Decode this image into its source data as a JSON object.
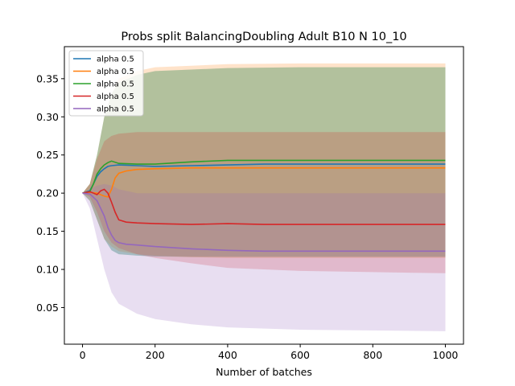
{
  "chart_data": {
    "type": "line",
    "title": "Probs split BalancingDoubling Adult B10 N 10_10",
    "xlabel": "Number of batches",
    "ylabel": "",
    "xlim": [
      -50,
      1050
    ],
    "ylim": [
      0.002,
      0.392
    ],
    "xticks": [
      0,
      200,
      400,
      600,
      800,
      1000
    ],
    "yticks": [
      0.05,
      0.1,
      0.15,
      0.2,
      0.25,
      0.3,
      0.35
    ],
    "ytick_labels": [
      "0.05",
      "0.10",
      "0.15",
      "0.20",
      "0.25",
      "0.30",
      "0.35"
    ],
    "legend_position": "upper-left",
    "grid": false,
    "series": [
      {
        "name": "alpha 0.5",
        "color": "#1f77b4",
        "mean": {
          "x": [
            0,
            20,
            30,
            40,
            50,
            60,
            70,
            80,
            100,
            150,
            200,
            300,
            400,
            500,
            600,
            800,
            1000
          ],
          "y": [
            0.2,
            0.203,
            0.212,
            0.222,
            0.228,
            0.232,
            0.235,
            0.236,
            0.237,
            0.236,
            0.235,
            0.236,
            0.237,
            0.238,
            0.238,
            0.238,
            0.238
          ]
        },
        "band": {
          "x": [
            0,
            20,
            40,
            60,
            80,
            100,
            150,
            200,
            300,
            400,
            600,
            1000
          ],
          "lower": [
            0.2,
            0.19,
            0.165,
            0.14,
            0.125,
            0.12,
            0.118,
            0.117,
            0.117,
            0.117,
            0.117,
            0.117
          ],
          "upper": [
            0.2,
            0.212,
            0.25,
            0.3,
            0.33,
            0.345,
            0.355,
            0.36,
            0.362,
            0.364,
            0.365,
            0.365
          ]
        }
      },
      {
        "name": "alpha 0.5",
        "color": "#ff7f0e",
        "mean": {
          "x": [
            0,
            20,
            40,
            60,
            70,
            80,
            90,
            100,
            120,
            150,
            200,
            300,
            400,
            500,
            600,
            800,
            1000
          ],
          "y": [
            0.2,
            0.201,
            0.2,
            0.196,
            0.195,
            0.205,
            0.22,
            0.226,
            0.229,
            0.231,
            0.232,
            0.233,
            0.233,
            0.233,
            0.233,
            0.233,
            0.233
          ]
        },
        "band": {
          "x": [
            0,
            20,
            40,
            60,
            80,
            100,
            150,
            200,
            300,
            400,
            600,
            1000
          ],
          "lower": [
            0.2,
            0.19,
            0.165,
            0.14,
            0.13,
            0.124,
            0.12,
            0.118,
            0.116,
            0.115,
            0.115,
            0.115
          ],
          "upper": [
            0.2,
            0.212,
            0.25,
            0.3,
            0.33,
            0.35,
            0.36,
            0.365,
            0.367,
            0.369,
            0.37,
            0.37
          ]
        }
      },
      {
        "name": "alpha 0.5",
        "color": "#2ca02c",
        "mean": {
          "x": [
            0,
            20,
            30,
            40,
            50,
            60,
            70,
            80,
            100,
            150,
            200,
            300,
            400,
            500,
            600,
            800,
            1000
          ],
          "y": [
            0.2,
            0.202,
            0.212,
            0.225,
            0.232,
            0.237,
            0.24,
            0.242,
            0.239,
            0.238,
            0.238,
            0.241,
            0.243,
            0.243,
            0.243,
            0.243,
            0.243
          ]
        },
        "band": {
          "x": [
            0,
            20,
            40,
            60,
            80,
            100,
            150,
            200,
            300,
            400,
            600,
            1000
          ],
          "lower": [
            0.2,
            0.19,
            0.165,
            0.14,
            0.125,
            0.12,
            0.118,
            0.117,
            0.116,
            0.116,
            0.116,
            0.116
          ],
          "upper": [
            0.2,
            0.212,
            0.25,
            0.3,
            0.33,
            0.345,
            0.355,
            0.36,
            0.362,
            0.364,
            0.365,
            0.365
          ]
        }
      },
      {
        "name": "alpha 0.5",
        "color": "#d62728",
        "mean": {
          "x": [
            0,
            20,
            40,
            50,
            60,
            70,
            80,
            90,
            100,
            120,
            150,
            200,
            300,
            400,
            500,
            600,
            800,
            1000
          ],
          "y": [
            0.2,
            0.202,
            0.198,
            0.203,
            0.205,
            0.2,
            0.188,
            0.175,
            0.165,
            0.162,
            0.161,
            0.16,
            0.159,
            0.16,
            0.159,
            0.159,
            0.159,
            0.159
          ]
        },
        "band": {
          "x": [
            0,
            20,
            40,
            60,
            80,
            100,
            150,
            200,
            300,
            400,
            600,
            1000
          ],
          "lower": [
            0.2,
            0.195,
            0.175,
            0.15,
            0.135,
            0.128,
            0.12,
            0.115,
            0.108,
            0.102,
            0.098,
            0.095
          ]
        },
        "band_upper": {
          "x": [
            0,
            20,
            40,
            60,
            80,
            100,
            150,
            200,
            300,
            400,
            600,
            1000
          ],
          "upper": [
            0.2,
            0.212,
            0.245,
            0.268,
            0.275,
            0.278,
            0.28,
            0.28,
            0.28,
            0.28,
            0.28,
            0.28
          ]
        }
      },
      {
        "name": "alpha 0.5",
        "color": "#9467bd",
        "mean": {
          "x": [
            0,
            20,
            40,
            60,
            70,
            80,
            90,
            100,
            120,
            150,
            200,
            300,
            400,
            500,
            600,
            800,
            1000
          ],
          "y": [
            0.2,
            0.199,
            0.19,
            0.17,
            0.155,
            0.145,
            0.138,
            0.135,
            0.133,
            0.132,
            0.13,
            0.127,
            0.125,
            0.124,
            0.124,
            0.124,
            0.124
          ]
        },
        "band": {
          "x": [
            0,
            20,
            40,
            60,
            80,
            100,
            150,
            200,
            300,
            400,
            600,
            1000
          ],
          "lower": [
            0.2,
            0.18,
            0.14,
            0.1,
            0.07,
            0.055,
            0.042,
            0.035,
            0.028,
            0.024,
            0.021,
            0.019
          ]
        },
        "band_upper": {
          "x": [
            0,
            20,
            40,
            60,
            80,
            100,
            150,
            200,
            300,
            400,
            600,
            1000
          ],
          "upper": [
            0.2,
            0.205,
            0.21,
            0.212,
            0.21,
            0.205,
            0.2,
            0.2,
            0.2,
            0.2,
            0.2,
            0.2
          ]
        }
      }
    ]
  }
}
